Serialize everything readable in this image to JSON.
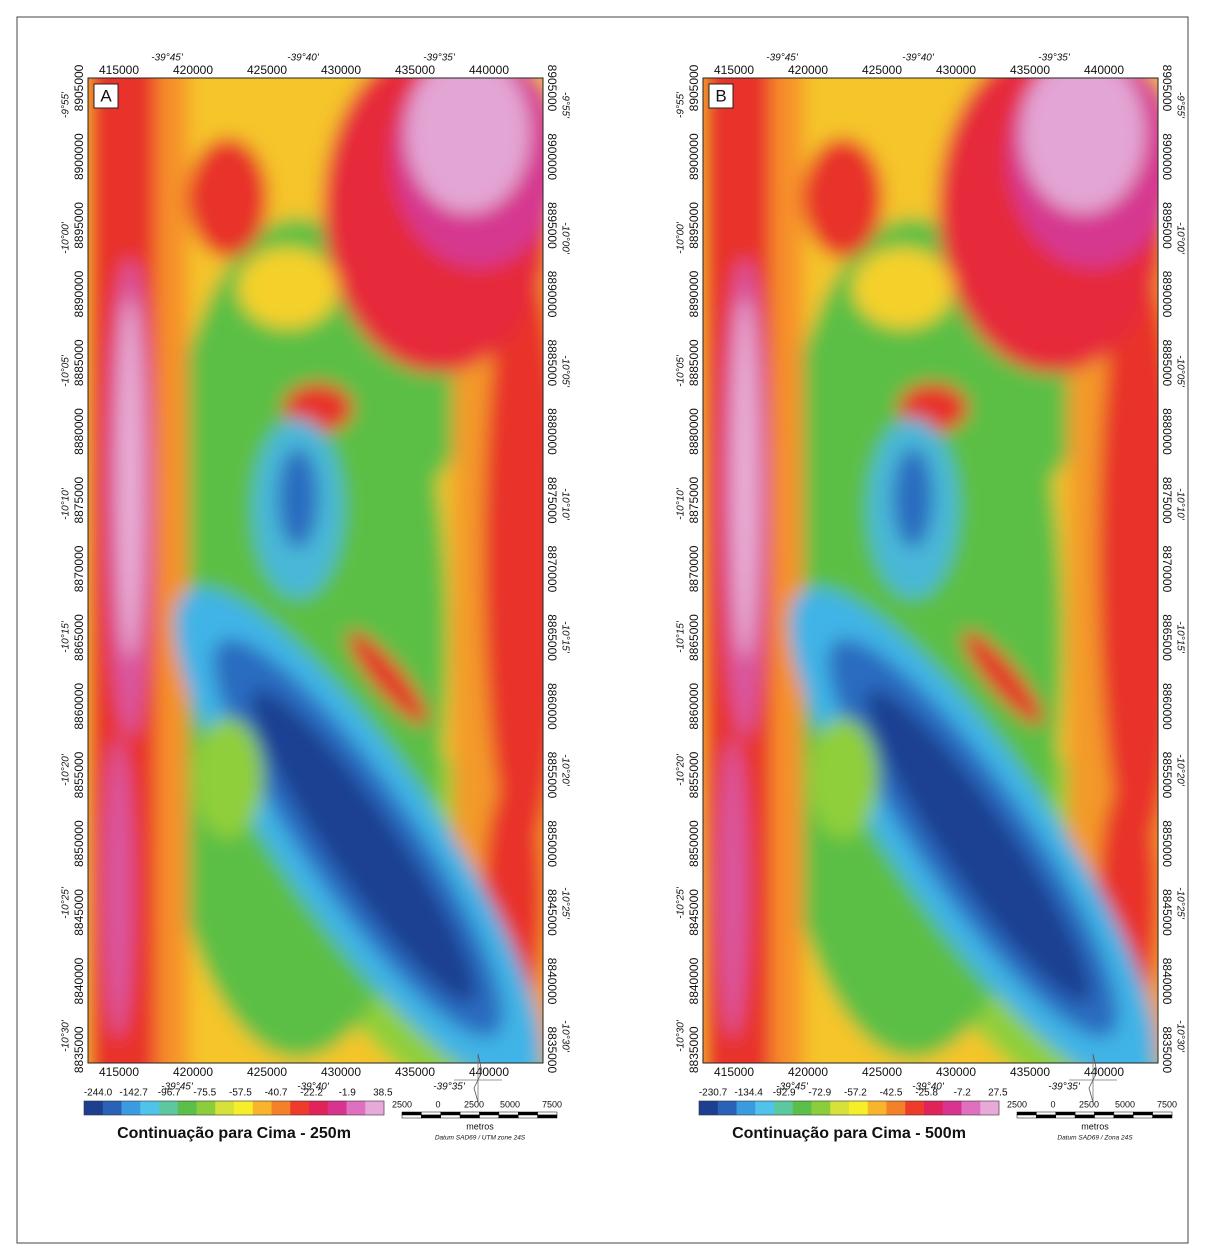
{
  "map_grid": {
    "eastings": [
      "415000",
      "420000",
      "425000",
      "430000",
      "435000",
      "440000"
    ],
    "lon_labels": [
      "-39°45'",
      "-39°40'",
      "-39°35'"
    ],
    "northings": [
      "8905000",
      "8900000",
      "8895000",
      "8890000",
      "8885000",
      "8880000",
      "8875000",
      "8870000",
      "8865000",
      "8860000",
      "8855000",
      "8850000",
      "8845000",
      "8840000",
      "8835000"
    ],
    "lat_labels": [
      "-9°55'",
      "-10°00'",
      "-10°05'",
      "-10°10'",
      "-10°15'",
      "-10°20'",
      "-10°25'",
      "-10°30'"
    ]
  },
  "scale": {
    "labels": [
      "2500",
      "0",
      "2500",
      "5000",
      "7500"
    ],
    "unit": "metros"
  },
  "panels": [
    {
      "label": "A",
      "colorbar_labels": [
        "-244.0",
        "-142.7",
        "-96.7",
        "-75.5",
        "-57.5",
        "-40.7",
        "-22.2",
        "-1.9",
        "38.5"
      ],
      "title": "Continuação para Cima - 250m",
      "datum": "Datum SAD69 / UTM zone 24S"
    },
    {
      "label": "B",
      "colorbar_labels": [
        "-230.7",
        "-134.4",
        "-92.9",
        "-72.9",
        "-57.2",
        "-42.5",
        "-25.8",
        "-7.2",
        "27.5"
      ],
      "title": "Continuação para Cima - 500m",
      "datum": "Datum SAD69 / Zona 24S"
    }
  ]
}
